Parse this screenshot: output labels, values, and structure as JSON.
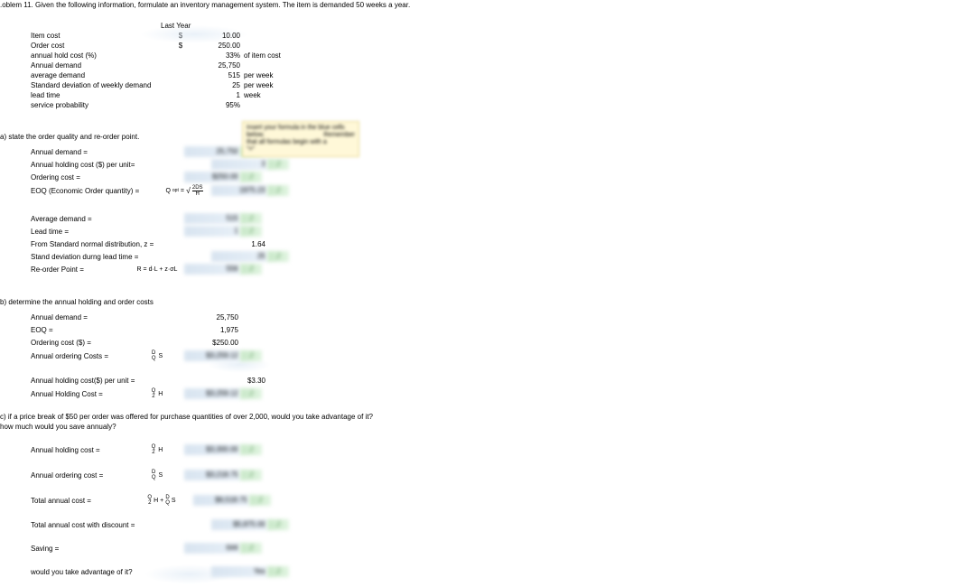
{
  "page": {
    "problem_heading": ".oblem 11. Given the following information, formulate an inventory management system. The item is demanded 50 weeks a year.",
    "last_year_header": "Last Year"
  },
  "given": {
    "rows": [
      {
        "label": "Item cost",
        "dollar": "$",
        "value": "10.00",
        "unit": ""
      },
      {
        "label": "Order cost",
        "dollar": "$",
        "value": "250.00",
        "unit": ""
      },
      {
        "label": "annual hold cost (%)",
        "dollar": "",
        "value": "33%",
        "unit": "of item cost"
      },
      {
        "label": "Annual demand",
        "dollar": "",
        "value": "25,750",
        "unit": ""
      },
      {
        "label": "average demand",
        "dollar": "",
        "value": "515",
        "unit": "per  week"
      },
      {
        "label": "Standard deviation of weekly demand",
        "dollar": "",
        "value": "25",
        "unit": "per  week"
      },
      {
        "label": "lead time",
        "dollar": "",
        "value": "1",
        "unit": "week"
      },
      {
        "label": "service probability",
        "dollar": "",
        "value": "95%",
        "unit": ""
      }
    ]
  },
  "note": {
    "l1": "Insert your formula in the",
    "l2": "blue cells below.",
    "l3": "Remember",
    "l4": "that all formulas begin with a",
    "l5": "\"=\""
  },
  "part_a": {
    "title": "a) state the order quality and re-order point.",
    "rows": [
      {
        "label": "Annual demand =",
        "formula": "",
        "value": "25,750",
        "j": "J"
      },
      {
        "label": "Annual holding cost ($) per unit=",
        "formula": "",
        "value": "3",
        "j": "J"
      },
      {
        "label": "Ordering cost =",
        "formula": "",
        "value": "$250.00",
        "j": "J"
      },
      {
        "label": "EOQ (Economic Order quantity) =",
        "formula": "eoq",
        "value": "1975.23",
        "j": "J"
      }
    ],
    "rows2": [
      {
        "label": "Average demand =",
        "formula": "",
        "value": "515",
        "j": "J"
      },
      {
        "label": "Lead time =",
        "formula": "",
        "value": "1",
        "j": "J"
      },
      {
        "label": "From Standard normal distribution, z =",
        "formula": "",
        "value": "1.64",
        "j": ""
      },
      {
        "label": "Stand deviation durng lead time =",
        "formula": "",
        "value": "25",
        "j": "J"
      },
      {
        "label": "Re-order Point =",
        "formula": "R = d·L + z·σL",
        "value": "556",
        "j": "J"
      }
    ]
  },
  "part_b": {
    "title": "b) determine the annual holding and order costs",
    "rows": [
      {
        "label": "Annual demand =",
        "formula": "",
        "value": "25,750",
        "j": ""
      },
      {
        "label": "EOQ =",
        "formula": "",
        "value": "1,975",
        "j": ""
      },
      {
        "label": "Ordering cost ($) =",
        "formula": "",
        "value": "$250.00",
        "j": ""
      },
      {
        "label": "Annual ordering Costs =",
        "formula": "D/Q · S",
        "value": "$3,259.12",
        "j": "J"
      }
    ],
    "rows2": [
      {
        "label": "Annual holding cost($) per unit =",
        "formula": "",
        "value": "$3.30",
        "j": ""
      },
      {
        "label": "Annual Holding Cost =",
        "formula": "Q/2 · H",
        "value": "$3,259.12",
        "j": "J"
      }
    ]
  },
  "part_c": {
    "title1": "c) if a price break of $50 per order was offered for purchase quantities of over 2,000, would you take advantage of it?",
    "title2": "how much would you save annualy?",
    "rows": [
      {
        "label": "Annual holding cost =",
        "formula": "Q/2 · H",
        "value": "$3,300.00",
        "j": "J"
      },
      {
        "label": "Annual ordering cost =",
        "formula": "D/Q · S",
        "value": "$3,218.75",
        "j": "J"
      },
      {
        "label": "Total annual cost =",
        "formula": "Q/2·H + D/Q·S",
        "value": "$6,518.75",
        "j": "J"
      },
      {
        "label": "Total annual cost with discount =",
        "formula": "",
        "value": "$5,875.00",
        "j": "J"
      },
      {
        "label": "Saving =",
        "formula": "",
        "value": "644",
        "j": "J"
      },
      {
        "label": "would you take advantage of it?",
        "formula": "",
        "value": "Yes",
        "j": "J"
      }
    ]
  },
  "styling": {
    "blue_cell_color": "#d8e4f0",
    "green_cell_color": "#c8e8c8",
    "note_bg": "#fff8d8",
    "font_size_base": 8,
    "font_size_formula": 7,
    "j_color": "#4b8b4b"
  }
}
